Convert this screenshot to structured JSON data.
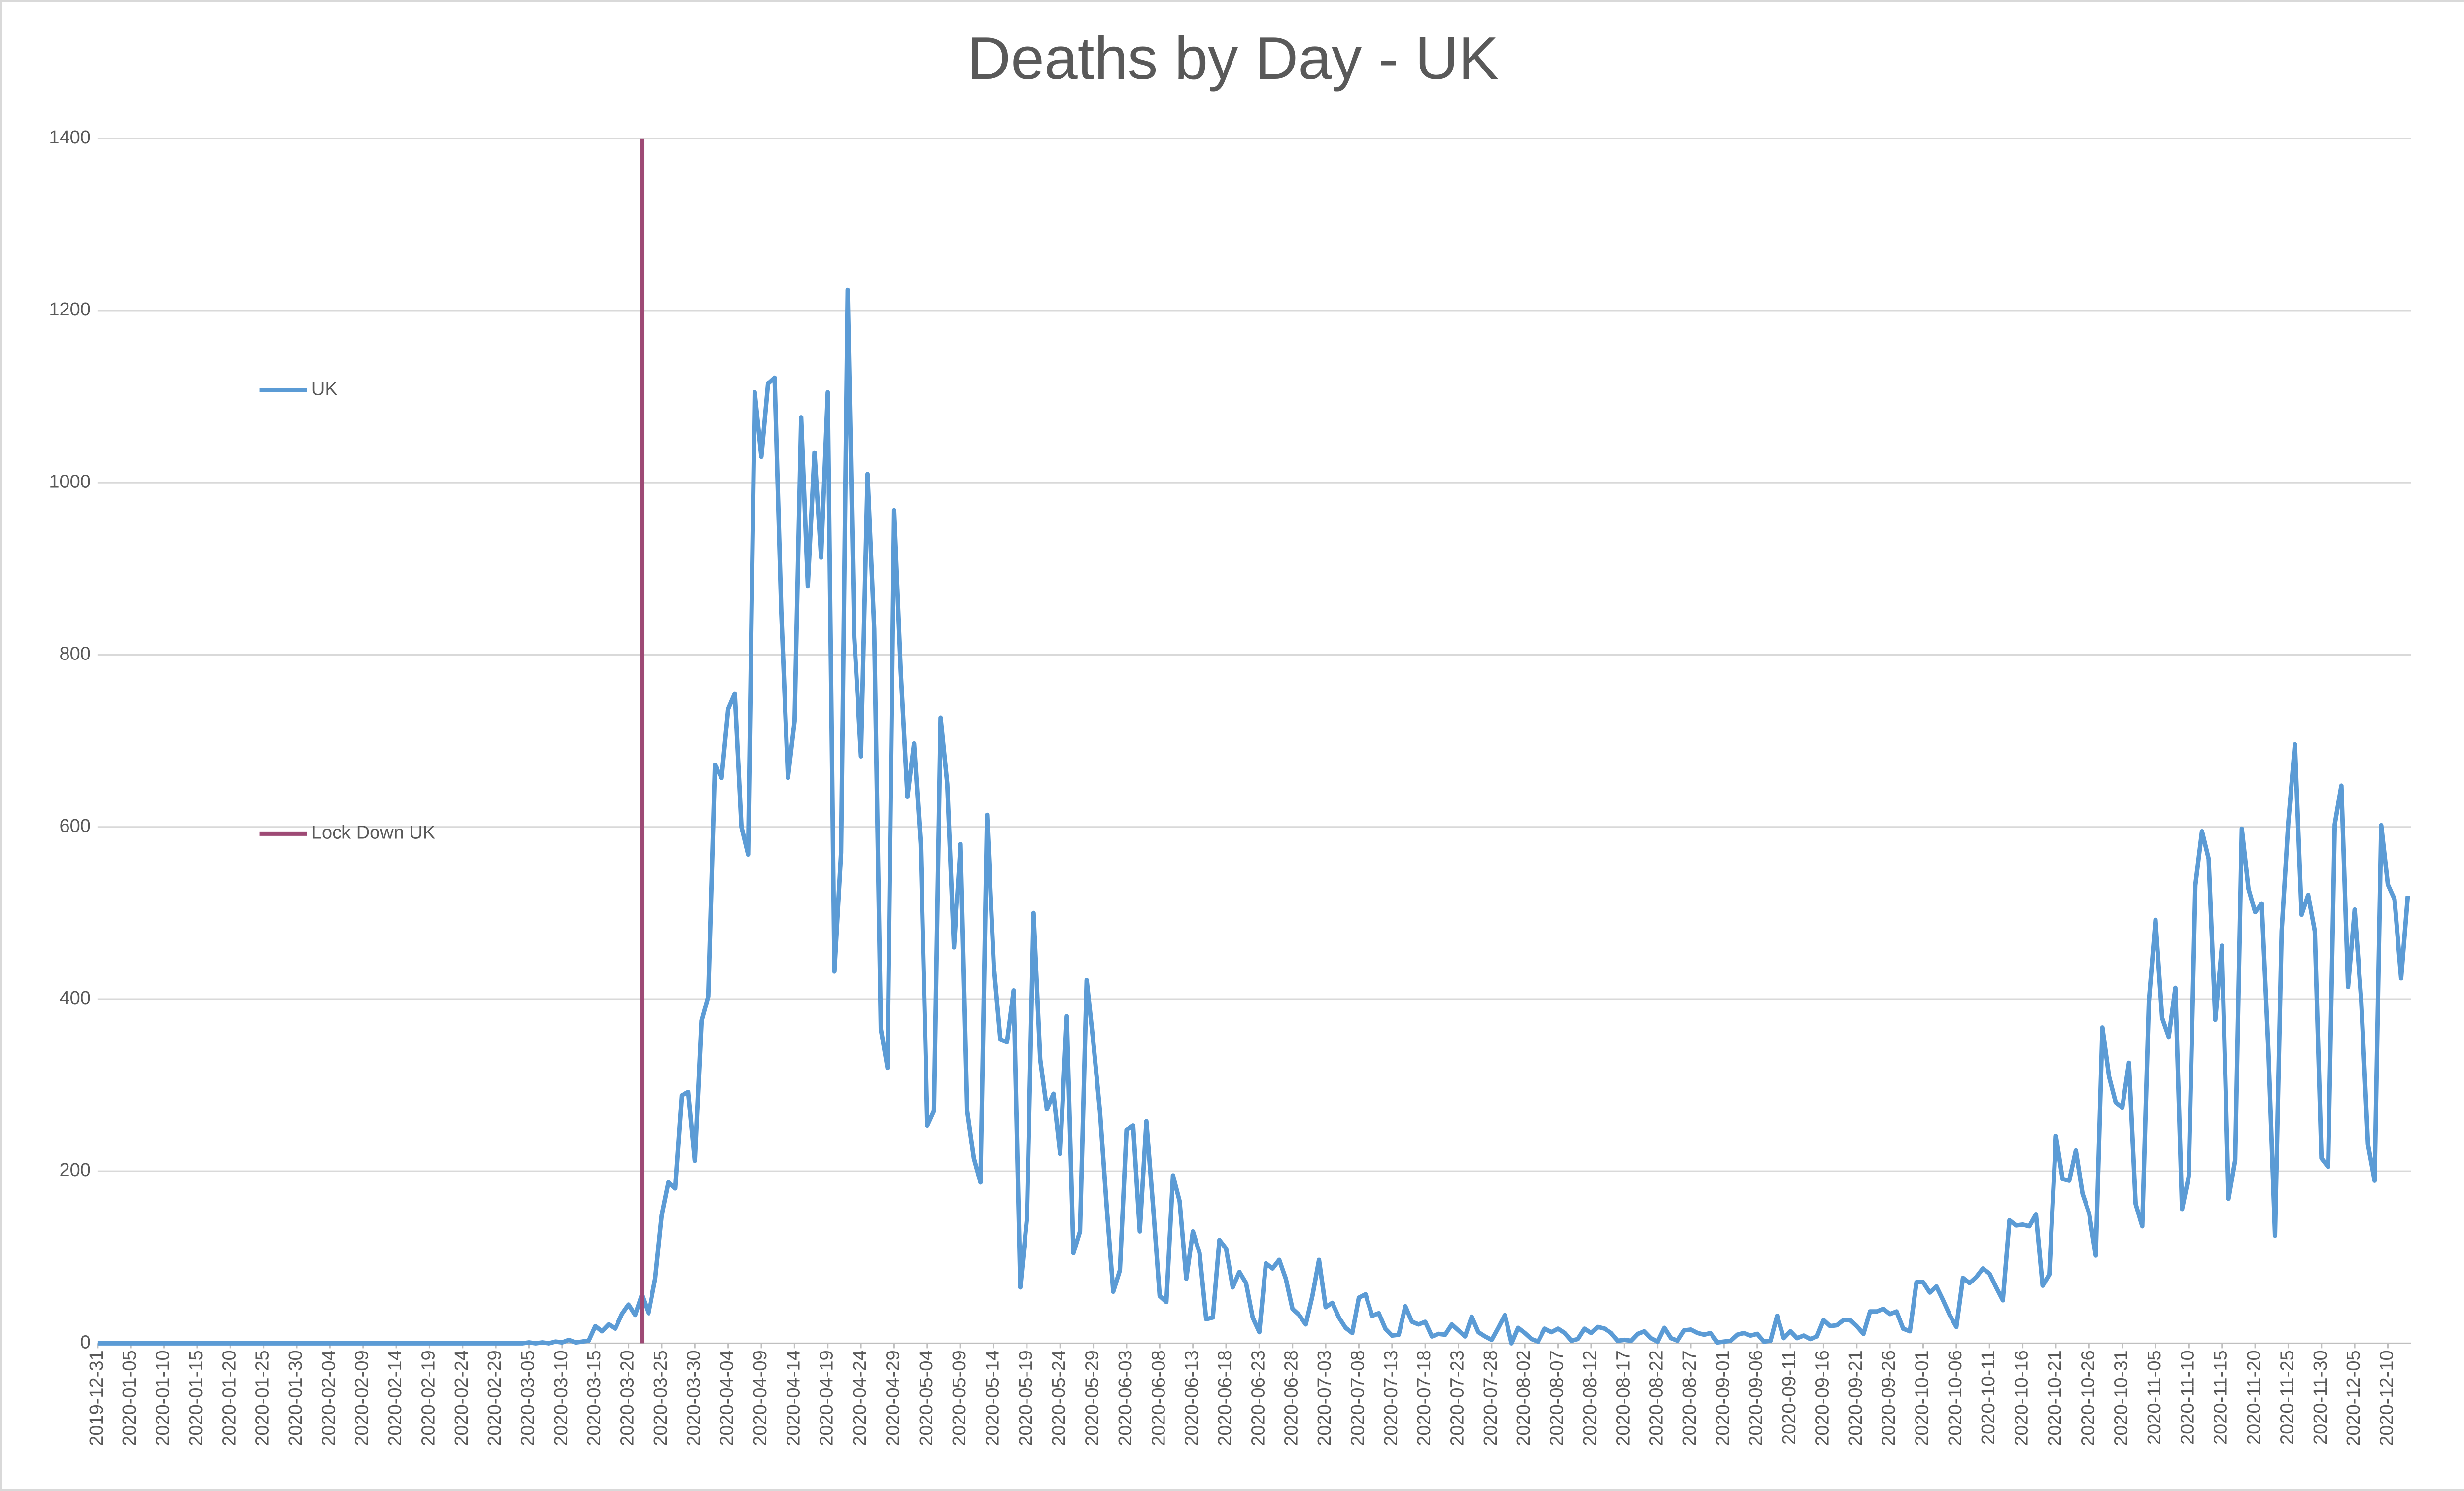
{
  "chart_data": {
    "type": "line",
    "title": "Deaths by Day - UK",
    "categories": [
      "2019-12-31",
      null,
      null,
      null,
      null,
      "2020-01-05",
      null,
      null,
      null,
      null,
      "2020-01-10",
      null,
      null,
      null,
      null,
      "2020-01-15",
      null,
      null,
      null,
      null,
      "2020-01-20",
      null,
      null,
      null,
      null,
      "2020-01-25",
      null,
      null,
      null,
      null,
      "2020-01-30",
      null,
      null,
      null,
      null,
      "2020-02-04",
      null,
      null,
      null,
      null,
      "2020-02-09",
      null,
      null,
      null,
      null,
      "2020-02-14",
      null,
      null,
      null,
      null,
      "2020-02-19",
      null,
      null,
      null,
      null,
      "2020-02-24",
      null,
      null,
      null,
      null,
      "2020-02-29",
      null,
      null,
      null,
      null,
      "2020-03-05",
      null,
      null,
      null,
      null,
      "2020-03-10",
      null,
      null,
      null,
      null,
      "2020-03-15",
      null,
      null,
      null,
      null,
      "2020-03-20",
      null,
      null,
      null,
      null,
      "2020-03-25",
      null,
      null,
      null,
      null,
      "2020-03-30",
      null,
      null,
      null,
      null,
      "2020-04-04",
      null,
      null,
      null,
      null,
      "2020-04-09",
      null,
      null,
      null,
      null,
      "2020-04-14",
      null,
      null,
      null,
      null,
      "2020-04-19",
      null,
      null,
      null,
      null,
      "2020-04-24",
      null,
      null,
      null,
      null,
      "2020-04-29",
      null,
      null,
      null,
      null,
      "2020-05-04",
      null,
      null,
      null,
      null,
      "2020-05-09",
      null,
      null,
      null,
      null,
      "2020-05-14",
      null,
      null,
      null,
      null,
      "2020-05-19",
      null,
      null,
      null,
      null,
      "2020-05-24",
      null,
      null,
      null,
      null,
      "2020-05-29",
      null,
      null,
      null,
      null,
      "2020-06-03",
      null,
      null,
      null,
      null,
      "2020-06-08",
      null,
      null,
      null,
      null,
      "2020-06-13",
      null,
      null,
      null,
      null,
      "2020-06-18",
      null,
      null,
      null,
      null,
      "2020-06-23",
      null,
      null,
      null,
      null,
      "2020-06-28",
      null,
      null,
      null,
      null,
      "2020-07-03",
      null,
      null,
      null,
      null,
      "2020-07-08",
      null,
      null,
      null,
      null,
      "2020-07-13",
      null,
      null,
      null,
      null,
      "2020-07-18",
      null,
      null,
      null,
      null,
      "2020-07-23",
      null,
      null,
      null,
      null,
      "2020-07-28",
      null,
      null,
      null,
      null,
      "2020-08-02",
      null,
      null,
      null,
      null,
      "2020-08-07",
      null,
      null,
      null,
      null,
      "2020-08-12",
      null,
      null,
      null,
      null,
      "2020-08-17",
      null,
      null,
      null,
      null,
      "2020-08-22",
      null,
      null,
      null,
      null,
      "2020-08-27",
      null,
      null,
      null,
      null,
      "2020-09-01",
      null,
      null,
      null,
      null,
      "2020-09-06",
      null,
      null,
      null,
      null,
      "2020-09-11",
      null,
      null,
      null,
      null,
      "2020-09-16",
      null,
      null,
      null,
      null,
      "2020-09-21",
      null,
      null,
      null,
      null,
      "2020-09-26",
      null,
      null,
      null,
      null,
      "2020-10-01",
      null,
      null,
      null,
      null,
      "2020-10-06",
      null,
      null,
      null,
      null,
      "2020-10-11",
      null,
      null,
      null,
      null,
      "2020-10-16",
      null,
      null,
      null,
      null,
      "2020-10-21",
      null,
      null,
      null,
      null,
      "2020-10-26",
      null,
      null,
      null,
      null,
      "2020-10-31",
      null,
      null,
      null,
      null,
      "2020-11-05",
      null,
      null,
      null,
      null,
      "2020-11-10",
      null,
      null,
      null,
      null,
      "2020-11-15",
      null,
      null,
      null,
      null,
      "2020-11-20",
      null,
      null,
      null,
      null,
      "2020-11-25",
      null,
      null,
      null,
      null,
      "2020-11-30",
      null,
      null,
      null,
      null,
      "2020-12-05",
      null,
      null,
      null,
      null,
      "2020-12-10",
      null,
      null,
      null
    ],
    "series": [
      {
        "name": "UK",
        "color": "#5b9bd5",
        "type": "line",
        "values": [
          0,
          0,
          0,
          0,
          0,
          0,
          0,
          0,
          0,
          0,
          0,
          0,
          0,
          0,
          0,
          0,
          0,
          0,
          0,
          0,
          0,
          0,
          0,
          0,
          0,
          0,
          0,
          0,
          0,
          0,
          0,
          0,
          0,
          0,
          0,
          0,
          0,
          0,
          0,
          0,
          0,
          0,
          0,
          0,
          0,
          0,
          0,
          0,
          0,
          0,
          0,
          0,
          0,
          0,
          0,
          0,
          0,
          0,
          0,
          0,
          0,
          0,
          0,
          0,
          0,
          1,
          0,
          1,
          0,
          2,
          1,
          4,
          1,
          2,
          3,
          20,
          14,
          22,
          17,
          34,
          45,
          33,
          56,
          35,
          75,
          149,
          187,
          180,
          288,
          292,
          212,
          375,
          403,
          672,
          657,
          737,
          755,
          600,
          568,
          1105,
          1030,
          1115,
          1122,
          850,
          657,
          723,
          1076,
          880,
          1035,
          913,
          1105,
          432,
          570,
          1224,
          820,
          682,
          1010,
          830,
          365,
          320,
          968,
          780,
          635,
          697,
          580,
          253,
          270,
          727,
          650,
          460,
          580,
          270,
          215,
          187,
          614,
          440,
          353,
          350,
          410,
          65,
          145,
          500,
          330,
          272,
          290,
          220,
          380,
          105,
          130,
          422,
          350,
          270,
          160,
          60,
          85,
          248,
          253,
          130,
          258,
          160,
          55,
          48,
          195,
          165,
          75,
          130,
          105,
          28,
          30,
          120,
          110,
          65,
          83,
          70,
          30,
          13,
          93,
          87,
          97,
          75,
          40,
          33,
          22,
          55,
          97,
          42,
          47,
          30,
          18,
          12,
          53,
          57,
          32,
          35,
          17,
          9,
          10,
          43,
          25,
          22,
          25,
          8,
          11,
          10,
          22,
          15,
          8,
          31,
          13,
          8,
          4,
          18,
          33,
          0,
          18,
          12,
          5,
          2,
          17,
          13,
          17,
          12,
          3,
          5,
          17,
          12,
          19,
          17,
          12,
          3,
          4,
          3,
          11,
          14,
          6,
          2,
          18,
          6,
          3,
          15,
          16,
          12,
          10,
          12,
          1,
          2,
          3,
          10,
          12,
          9,
          11,
          2,
          3,
          32,
          6,
          14,
          6,
          9,
          5,
          8,
          27,
          20,
          21,
          27,
          27,
          20,
          11,
          37,
          37,
          40,
          34,
          37,
          17,
          14,
          71,
          71,
          59,
          66,
          50,
          33,
          19,
          76,
          70,
          77,
          87,
          81,
          65,
          50,
          143,
          137,
          138,
          136,
          150,
          67,
          80,
          241,
          191,
          189,
          224,
          174,
          151,
          102,
          367,
          310,
          280,
          274,
          326,
          162,
          136,
          397,
          492,
          378,
          356,
          413,
          156,
          194,
          532,
          595,
          563,
          376,
          462,
          168,
          213,
          598,
          528,
          501,
          511,
          341,
          125,
          479,
          605,
          696,
          498,
          521,
          479,
          215,
          205,
          603,
          648,
          414,
          504,
          397,
          231,
          189,
          602,
          533,
          516,
          424,
          520
        ]
      },
      {
        "name": "Lock Down UK",
        "color": "#9e4a75",
        "type": "bar",
        "values": [
          null,
          null,
          null,
          null,
          null,
          null,
          null,
          null,
          null,
          null,
          null,
          null,
          null,
          null,
          null,
          null,
          null,
          null,
          null,
          null,
          null,
          null,
          null,
          null,
          null,
          null,
          null,
          null,
          null,
          null,
          null,
          null,
          null,
          null,
          null,
          null,
          null,
          null,
          null,
          null,
          null,
          null,
          null,
          null,
          null,
          null,
          null,
          null,
          null,
          null,
          null,
          null,
          null,
          null,
          null,
          null,
          null,
          null,
          null,
          null,
          null,
          null,
          null,
          null,
          null,
          null,
          null,
          null,
          null,
          null,
          null,
          null,
          null,
          null,
          null,
          null,
          null,
          null,
          null,
          null,
          null,
          null,
          1400,
          null,
          null,
          null,
          null,
          null,
          null,
          null,
          null,
          null,
          null,
          null,
          null,
          null,
          null,
          null,
          null,
          null,
          null,
          null,
          null,
          null,
          null,
          null,
          null,
          null,
          null,
          null,
          null,
          null,
          null,
          null,
          null,
          null,
          null,
          null,
          null,
          null,
          null,
          null,
          null,
          null,
          null,
          null,
          null,
          null,
          null,
          null,
          null,
          null,
          null,
          null,
          null,
          null,
          null,
          null,
          null,
          null,
          null,
          null,
          null,
          null,
          null,
          null,
          null,
          null,
          null,
          null,
          null,
          null,
          null,
          null,
          null,
          null,
          null,
          null,
          null,
          null,
          null,
          null,
          null,
          null,
          null,
          null,
          null,
          null,
          null,
          null,
          null,
          null,
          null,
          null,
          null,
          null,
          null,
          null,
          null,
          null,
          null,
          null,
          null,
          null,
          null,
          null,
          null,
          null,
          null,
          null,
          null,
          null,
          null,
          null,
          null,
          null,
          null,
          null,
          null,
          null,
          null,
          null,
          null,
          null,
          null,
          null,
          null,
          null,
          null,
          null,
          null,
          null,
          null,
          null,
          null,
          null,
          null,
          null,
          null,
          null,
          null,
          null,
          null,
          null,
          null,
          null,
          null,
          null,
          null,
          null,
          null,
          null,
          null,
          null,
          null,
          null,
          null,
          null,
          null,
          null,
          null,
          null,
          null,
          null,
          null,
          null,
          null,
          null,
          null,
          null,
          null,
          null,
          null,
          null,
          null,
          null,
          null,
          null,
          null,
          null,
          null,
          null,
          null,
          null,
          null,
          null,
          null,
          null,
          null,
          null,
          null,
          null,
          null,
          null,
          null,
          null,
          null,
          null,
          null,
          null,
          null,
          null,
          null,
          null,
          null,
          null,
          null,
          null,
          null,
          null,
          null,
          null,
          null,
          null,
          null,
          null,
          null,
          null,
          null,
          null,
          null,
          null,
          null,
          null,
          null,
          null,
          null,
          null,
          null,
          null,
          null,
          null,
          null,
          null,
          null,
          null,
          null,
          null,
          null,
          null,
          null,
          null,
          null,
          null,
          null,
          null,
          null,
          null,
          null,
          null,
          null,
          null,
          null,
          null,
          null,
          null,
          null,
          null,
          null,
          null,
          null,
          null,
          null,
          null,
          null,
          null,
          null,
          null,
          null
        ]
      }
    ],
    "ylim": [
      0,
      1400
    ],
    "yticks": [
      0,
      200,
      400,
      600,
      800,
      1000,
      1200,
      1400
    ],
    "grid": true,
    "legend": "left"
  }
}
